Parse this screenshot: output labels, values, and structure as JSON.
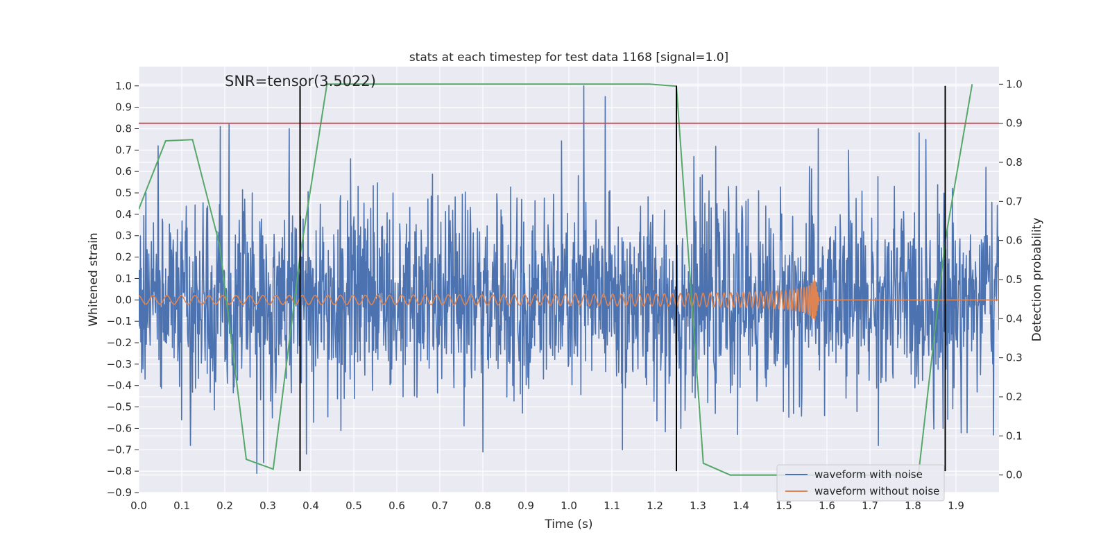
{
  "chart_data": {
    "type": "line",
    "title": "stats at each timestep for test data 1168 [signal=1.0]",
    "xlabel": "Time (s)",
    "ylabel_left": "Whitened strain",
    "ylabel_right": "Detection probability",
    "xlim": [
      0.0,
      2.0
    ],
    "ylim_left": [
      -0.9,
      1.09
    ],
    "ylim_right": [
      -0.045,
      1.045
    ],
    "x_ticks": [
      0.0,
      0.1,
      0.2,
      0.3,
      0.4,
      0.5,
      0.6,
      0.7,
      0.8,
      0.9,
      1.0,
      1.1,
      1.2,
      1.3,
      1.4,
      1.5,
      1.6,
      1.7,
      1.8,
      1.9
    ],
    "x_tick_labels": [
      "0.0",
      "0.1",
      "0.2",
      "0.3",
      "0.4",
      "0.5",
      "0.6",
      "0.7",
      "0.8",
      "0.9",
      "1.0",
      "1.1",
      "1.2",
      "1.3",
      "1.4",
      "1.5",
      "1.6",
      "1.7",
      "1.8",
      "1.9"
    ],
    "y_left_ticks": [
      -0.9,
      -0.8,
      -0.7,
      -0.6,
      -0.5,
      -0.4,
      -0.3,
      -0.2,
      -0.1,
      0.0,
      0.1,
      0.2,
      0.3,
      0.4,
      0.5,
      0.6,
      0.7,
      0.8,
      0.9,
      1.0
    ],
    "y_left_tick_labels": [
      "−0.9",
      "−0.8",
      "−0.7",
      "−0.6",
      "−0.5",
      "−0.4",
      "−0.3",
      "−0.2",
      "−0.1",
      "0.0",
      "0.1",
      "0.2",
      "0.3",
      "0.4",
      "0.5",
      "0.6",
      "0.7",
      "0.8",
      "0.9",
      "1.0"
    ],
    "y_right_ticks": [
      0.0,
      0.1,
      0.2,
      0.3,
      0.4,
      0.5,
      0.6,
      0.7,
      0.8,
      0.9,
      1.0
    ],
    "y_right_tick_labels": [
      "0.0",
      "0.1",
      "0.2",
      "0.3",
      "0.4",
      "0.5",
      "0.6",
      "0.7",
      "0.8",
      "0.9",
      "1.0"
    ],
    "annotation": "SNR=tensor(3.5022)",
    "annotation_position": {
      "x": 0.2,
      "y": 1.0
    },
    "threshold": {
      "axis": "right",
      "value": 0.9,
      "color": "#c44e52"
    },
    "vertical_markers": {
      "x": [
        0.375,
        1.25,
        1.875
      ],
      "ymin": -0.8,
      "ymax": 1.0,
      "color": "#000000"
    },
    "detection_probability": {
      "name": "detection probability",
      "color": "#55a868",
      "x": [
        0.0,
        0.0625,
        0.125,
        0.1875,
        0.25,
        0.3125,
        0.375,
        0.4375,
        0.5,
        0.5625,
        0.625,
        0.6875,
        0.75,
        0.8125,
        0.875,
        0.9375,
        1.0,
        1.0625,
        1.125,
        1.1875,
        1.25,
        1.3125,
        1.375,
        1.4375,
        1.5,
        1.5625,
        1.625,
        1.6875,
        1.75,
        1.8125,
        1.875,
        1.9375
      ],
      "y": [
        0.68,
        0.855,
        0.858,
        0.59,
        0.04,
        0.015,
        0.56,
        1.0,
        1.0,
        1.0,
        1.0,
        1.0,
        1.0,
        1.0,
        1.0,
        1.0,
        1.0,
        1.0,
        1.0,
        1.0,
        0.995,
        0.03,
        0.0,
        0.0,
        0.0,
        0.0,
        0.0,
        0.0,
        0.0,
        0.0,
        0.6,
        1.0
      ]
    },
    "noisy_waveform": {
      "name": "waveform with noise",
      "color": "#4c72b0",
      "x_range": [
        0.0,
        2.0
      ],
      "samples": 2048,
      "amplitude_typical": 0.25,
      "peaks": [
        {
          "x": 0.015,
          "y": -0.37
        },
        {
          "x": 0.045,
          "y": 0.72
        },
        {
          "x": 0.1,
          "y": -0.56
        },
        {
          "x": 0.12,
          "y": -0.68
        },
        {
          "x": 0.19,
          "y": 0.81
        },
        {
          "x": 0.21,
          "y": 0.82
        },
        {
          "x": 0.275,
          "y": -0.81
        },
        {
          "x": 0.29,
          "y": -0.76
        },
        {
          "x": 0.35,
          "y": 0.8
        },
        {
          "x": 0.39,
          "y": -0.72
        },
        {
          "x": 0.47,
          "y": -0.61
        },
        {
          "x": 0.8,
          "y": -0.71
        },
        {
          "x": 1.035,
          "y": 1.0
        },
        {
          "x": 1.085,
          "y": 0.95
        },
        {
          "x": 1.125,
          "y": -0.7
        },
        {
          "x": 1.26,
          "y": -0.6
        },
        {
          "x": 1.58,
          "y": 0.8
        },
        {
          "x": 1.65,
          "y": 0.7
        },
        {
          "x": 1.83,
          "y": 0.75
        },
        {
          "x": 1.87,
          "y": -0.6
        },
        {
          "x": 1.97,
          "y": 0.62
        }
      ]
    },
    "clean_waveform": {
      "name": "waveform without noise",
      "color": "#dd8452",
      "x_range": [
        0.0,
        2.0
      ],
      "merger_time": 1.57,
      "start_frequency_hz": 30,
      "start_amplitude": 0.02,
      "peak_amplitude": 0.12
    },
    "legend": {
      "position": "lower-right",
      "entries": [
        {
          "label": "waveform with noise",
          "color": "#4c72b0"
        },
        {
          "label": "waveform without noise",
          "color": "#dd8452"
        }
      ]
    },
    "grid": true,
    "background": "#eaeaf2"
  }
}
